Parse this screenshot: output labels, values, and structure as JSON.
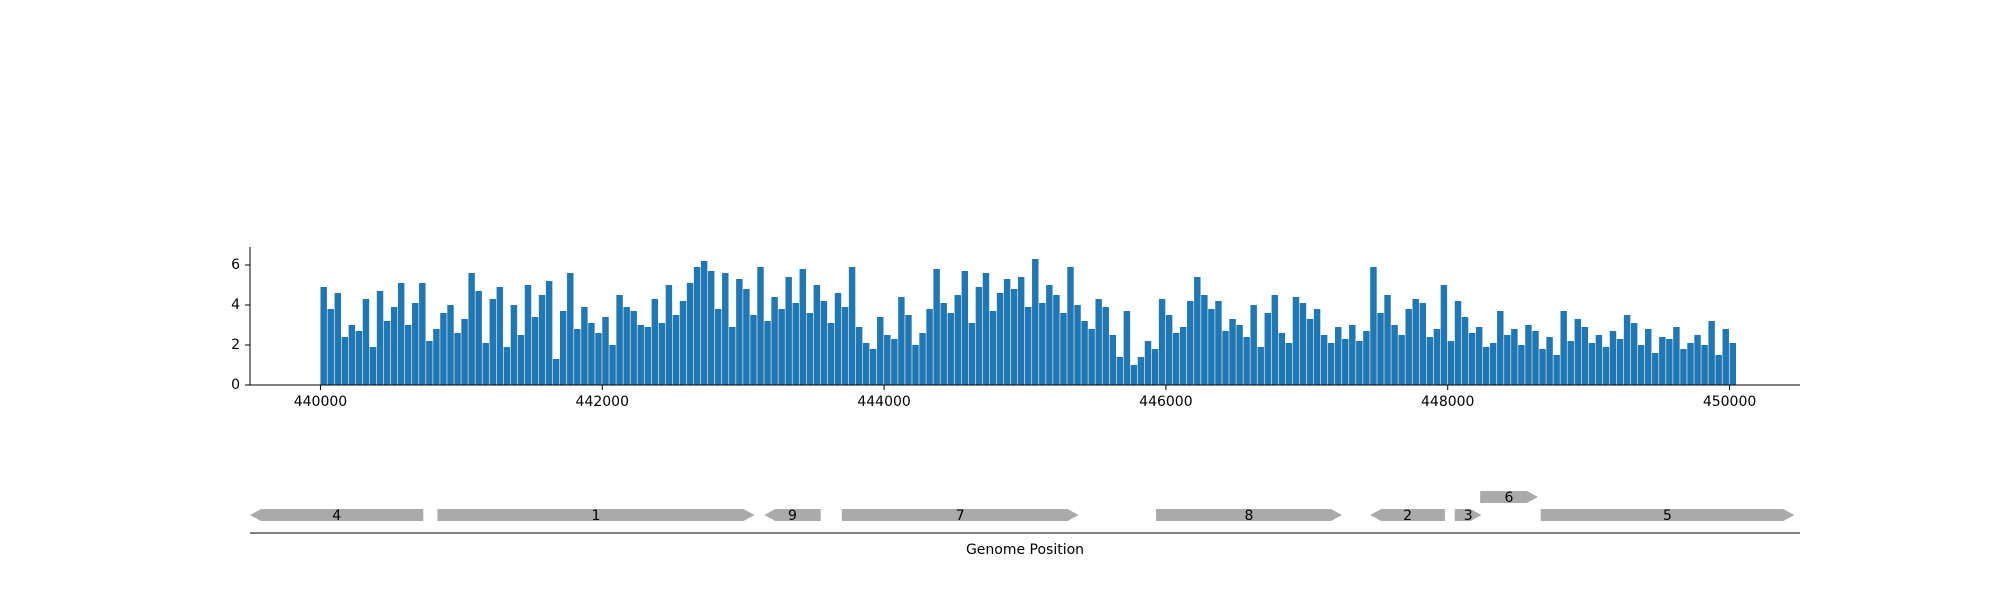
{
  "chart_data": [
    {
      "type": "area",
      "xlim": [
        439500,
        450500
      ],
      "ylim": [
        0,
        6.9
      ],
      "x_ticks": [
        440000,
        442000,
        444000,
        446000,
        448000,
        450000
      ],
      "x_tick_labels": [
        "440000",
        "442000",
        "444000",
        "446000",
        "448000",
        "450000"
      ],
      "y_ticks": [
        0,
        2,
        4,
        6
      ],
      "y_tick_labels": [
        "0",
        "2",
        "4",
        "6"
      ],
      "series": [
        {
          "color": "#1f77b4",
          "x_step": 50,
          "x": [
            440000,
            440050,
            440100,
            440150,
            440200,
            440250,
            440300,
            440350,
            440400,
            440450,
            440500,
            440550,
            440600,
            440650,
            440700,
            440750,
            440800,
            440850,
            440900,
            440950,
            441000,
            441050,
            441100,
            441150,
            441200,
            441250,
            441300,
            441350,
            441400,
            441450,
            441500,
            441550,
            441600,
            441650,
            441700,
            441750,
            441800,
            441850,
            441900,
            441950,
            442000,
            442050,
            442100,
            442150,
            442200,
            442250,
            442300,
            442350,
            442400,
            442450,
            442500,
            442550,
            442600,
            442650,
            442700,
            442750,
            442800,
            442850,
            442900,
            442950,
            443000,
            443050,
            443100,
            443150,
            443200,
            443250,
            443300,
            443350,
            443400,
            443450,
            443500,
            443550,
            443600,
            443650,
            443700,
            443750,
            443800,
            443850,
            443900,
            443950,
            444000,
            444050,
            444100,
            444150,
            444200,
            444250,
            444300,
            444350,
            444400,
            444450,
            444500,
            444550,
            444600,
            444650,
            444700,
            444750,
            444800,
            444850,
            444900,
            444950,
            445000,
            445050,
            445100,
            445150,
            445200,
            445250,
            445300,
            445350,
            445400,
            445450,
            445500,
            445550,
            445600,
            445650,
            445700,
            445750,
            445800,
            445850,
            445900,
            445950,
            446000,
            446050,
            446100,
            446150,
            446200,
            446250,
            446300,
            446350,
            446400,
            446450,
            446500,
            446550,
            446600,
            446650,
            446700,
            446750,
            446800,
            446850,
            446900,
            446950,
            447000,
            447050,
            447100,
            447150,
            447200,
            447250,
            447300,
            447350,
            447400,
            447450,
            447500,
            447550,
            447600,
            447650,
            447700,
            447750,
            447800,
            447850,
            447900,
            447950,
            448000,
            448050,
            448100,
            448150,
            448200,
            448250,
            448300,
            448350,
            448400,
            448450,
            448500,
            448550,
            448600,
            448650,
            448700,
            448750,
            448800,
            448850,
            448900,
            448950,
            449000,
            449050,
            449100,
            449150,
            449200,
            449250,
            449300,
            449350,
            449400,
            449450,
            449500,
            449550,
            449600,
            449650,
            449700,
            449750,
            449800,
            449850,
            449900,
            449950,
            450000
          ],
          "y": [
            4.9,
            3.8,
            4.6,
            2.4,
            3.0,
            2.7,
            4.3,
            1.9,
            4.7,
            3.2,
            3.9,
            5.1,
            3.0,
            4.1,
            5.1,
            2.2,
            2.8,
            3.6,
            4.0,
            2.6,
            3.3,
            5.6,
            4.7,
            2.1,
            4.3,
            4.9,
            1.9,
            4.0,
            2.5,
            5.0,
            3.4,
            4.5,
            5.2,
            1.3,
            3.7,
            5.6,
            2.8,
            3.9,
            3.1,
            2.6,
            3.4,
            2.0,
            4.5,
            3.9,
            3.7,
            3.0,
            2.9,
            4.3,
            3.1,
            5.0,
            3.5,
            4.2,
            5.1,
            5.9,
            6.2,
            5.7,
            3.8,
            5.6,
            2.9,
            5.3,
            4.8,
            3.5,
            5.9,
            3.2,
            4.4,
            3.8,
            5.4,
            4.1,
            5.8,
            3.6,
            5.0,
            4.2,
            3.1,
            4.6,
            3.9,
            5.9,
            2.9,
            2.1,
            1.8,
            3.4,
            2.5,
            2.3,
            4.4,
            3.5,
            2.0,
            2.6,
            3.8,
            5.8,
            4.1,
            3.6,
            4.5,
            5.7,
            3.1,
            4.9,
            5.6,
            3.7,
            4.6,
            5.3,
            4.8,
            5.4,
            3.9,
            6.3,
            4.1,
            5.0,
            4.5,
            3.6,
            5.9,
            4.0,
            3.2,
            2.8,
            4.3,
            3.9,
            2.5,
            1.4,
            3.7,
            1.0,
            1.4,
            2.2,
            1.8,
            4.3,
            3.5,
            2.6,
            2.9,
            4.2,
            5.4,
            4.5,
            3.8,
            4.2,
            2.7,
            3.3,
            3.0,
            2.4,
            4.0,
            1.9,
            3.6,
            4.5,
            2.6,
            2.1,
            4.4,
            4.1,
            3.3,
            3.8,
            2.5,
            2.1,
            2.9,
            2.3,
            3.0,
            2.2,
            2.7,
            5.9,
            3.6,
            4.5,
            3.0,
            2.5,
            3.8,
            4.3,
            4.1,
            2.4,
            2.8,
            5.0,
            2.2,
            4.2,
            3.4,
            2.6,
            2.9,
            1.9,
            2.1,
            3.7,
            2.5,
            2.8,
            2.0,
            3.0,
            2.7,
            1.8,
            2.4,
            1.5,
            3.7,
            2.2,
            3.3,
            2.9,
            2.1,
            2.5,
            1.9,
            2.7,
            2.3,
            3.5,
            3.1,
            2.0,
            2.8,
            1.6,
            2.4,
            2.3,
            2.9,
            1.8,
            2.1,
            2.5,
            2.0,
            3.2,
            1.5,
            2.8,
            2.1
          ]
        }
      ]
    },
    {
      "type": "gene-map",
      "xlim": [
        439500,
        450500
      ],
      "xlabel": "Genome Position",
      "features": [
        {
          "label": "4",
          "start": 439500,
          "end": 440730,
          "strand": -1,
          "track": 0
        },
        {
          "label": "1",
          "start": 440830,
          "end": 443080,
          "strand": 1,
          "track": 0
        },
        {
          "label": "9",
          "start": 443150,
          "end": 443550,
          "strand": -1,
          "track": 0
        },
        {
          "label": "7",
          "start": 443700,
          "end": 445380,
          "strand": 1,
          "track": 0
        },
        {
          "label": "8",
          "start": 445930,
          "end": 447250,
          "strand": 1,
          "track": 0
        },
        {
          "label": "2",
          "start": 447450,
          "end": 447980,
          "strand": -1,
          "track": 0
        },
        {
          "label": "3",
          "start": 448050,
          "end": 448240,
          "strand": 1,
          "track": 0
        },
        {
          "label": "6",
          "start": 448230,
          "end": 448640,
          "strand": 1,
          "track": 1
        },
        {
          "label": "5",
          "start": 448660,
          "end": 450460,
          "strand": 1,
          "track": 0
        }
      ],
      "colors": {
        "feature": "#aaaaaa",
        "axis": "#000000"
      }
    }
  ]
}
